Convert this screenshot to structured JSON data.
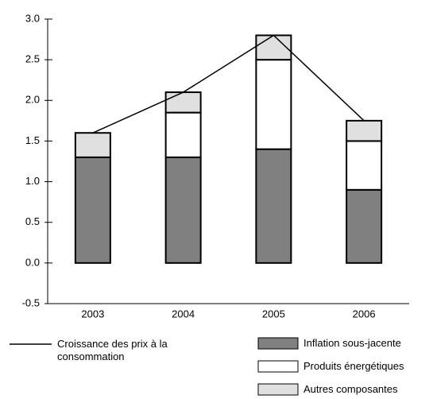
{
  "chart_data": {
    "type": "bar",
    "stacked": true,
    "categories": [
      "2003",
      "2004",
      "2005",
      "2006"
    ],
    "series": [
      {
        "name": "Inflation sous-jacente",
        "color": "#808080",
        "values": [
          1.3,
          1.3,
          1.4,
          0.9
        ]
      },
      {
        "name": "Produits énergétiques",
        "color": "#ffffff",
        "values": [
          0,
          0.55,
          1.1,
          0.6
        ]
      },
      {
        "name": "Autres composantes",
        "color": "#e0e0e0",
        "values": [
          0.3,
          0.25,
          0.3,
          0.25
        ]
      },
      {
        "name": "Croissance des prix à la consommation",
        "color": "#000000",
        "type": "line",
        "values": [
          1.6,
          2.1,
          2.8,
          1.75
        ]
      }
    ],
    "ylim": [
      -0.5,
      3
    ],
    "yticks": [
      {
        "value": -0.5,
        "label": "-0.5"
      },
      {
        "value": 0,
        "label": "0.0"
      },
      0.5,
      {
        "value": 1,
        "label": "1.0"
      },
      1.5,
      {
        "value": 2,
        "label": "2.0"
      },
      2.5,
      {
        "value": 3,
        "label": "3.0"
      }
    ],
    "grid": false
  }
}
